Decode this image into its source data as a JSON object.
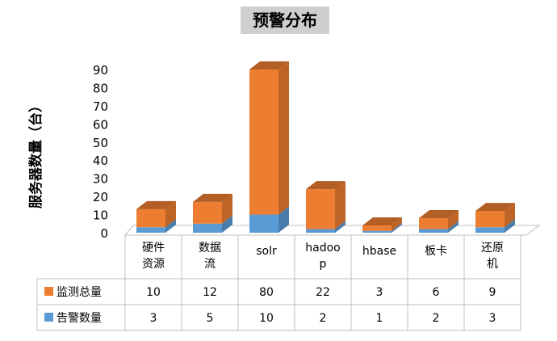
{
  "chart_data": {
    "type": "bar",
    "stacked": true,
    "view": "3d",
    "title": "预警分布",
    "ylabel": "服务器数量（台）",
    "xlabel": "",
    "ylim": [
      0,
      90
    ],
    "yticks": [
      0,
      10,
      20,
      30,
      40,
      50,
      60,
      70,
      80,
      90
    ],
    "grid": false,
    "legend_placement": "data-table",
    "categories": [
      "硬件资源",
      "数据流",
      "solr",
      "hadoop",
      "hbase",
      "板卡",
      "还原机"
    ],
    "category_label_lines": [
      [
        "硬件",
        "资源"
      ],
      [
        "数据",
        "流"
      ],
      [
        "solr"
      ],
      [
        "hadoo",
        "p"
      ],
      [
        "hbase"
      ],
      [
        "板卡"
      ],
      [
        "还原",
        "机"
      ]
    ],
    "series": [
      {
        "name": "监测总量",
        "color": "#ed7d31",
        "values": [
          10,
          12,
          80,
          22,
          3,
          6,
          9
        ]
      },
      {
        "name": "告警数量",
        "color": "#5b9bd5",
        "values": [
          3,
          5,
          10,
          2,
          1,
          2,
          3
        ]
      }
    ]
  }
}
